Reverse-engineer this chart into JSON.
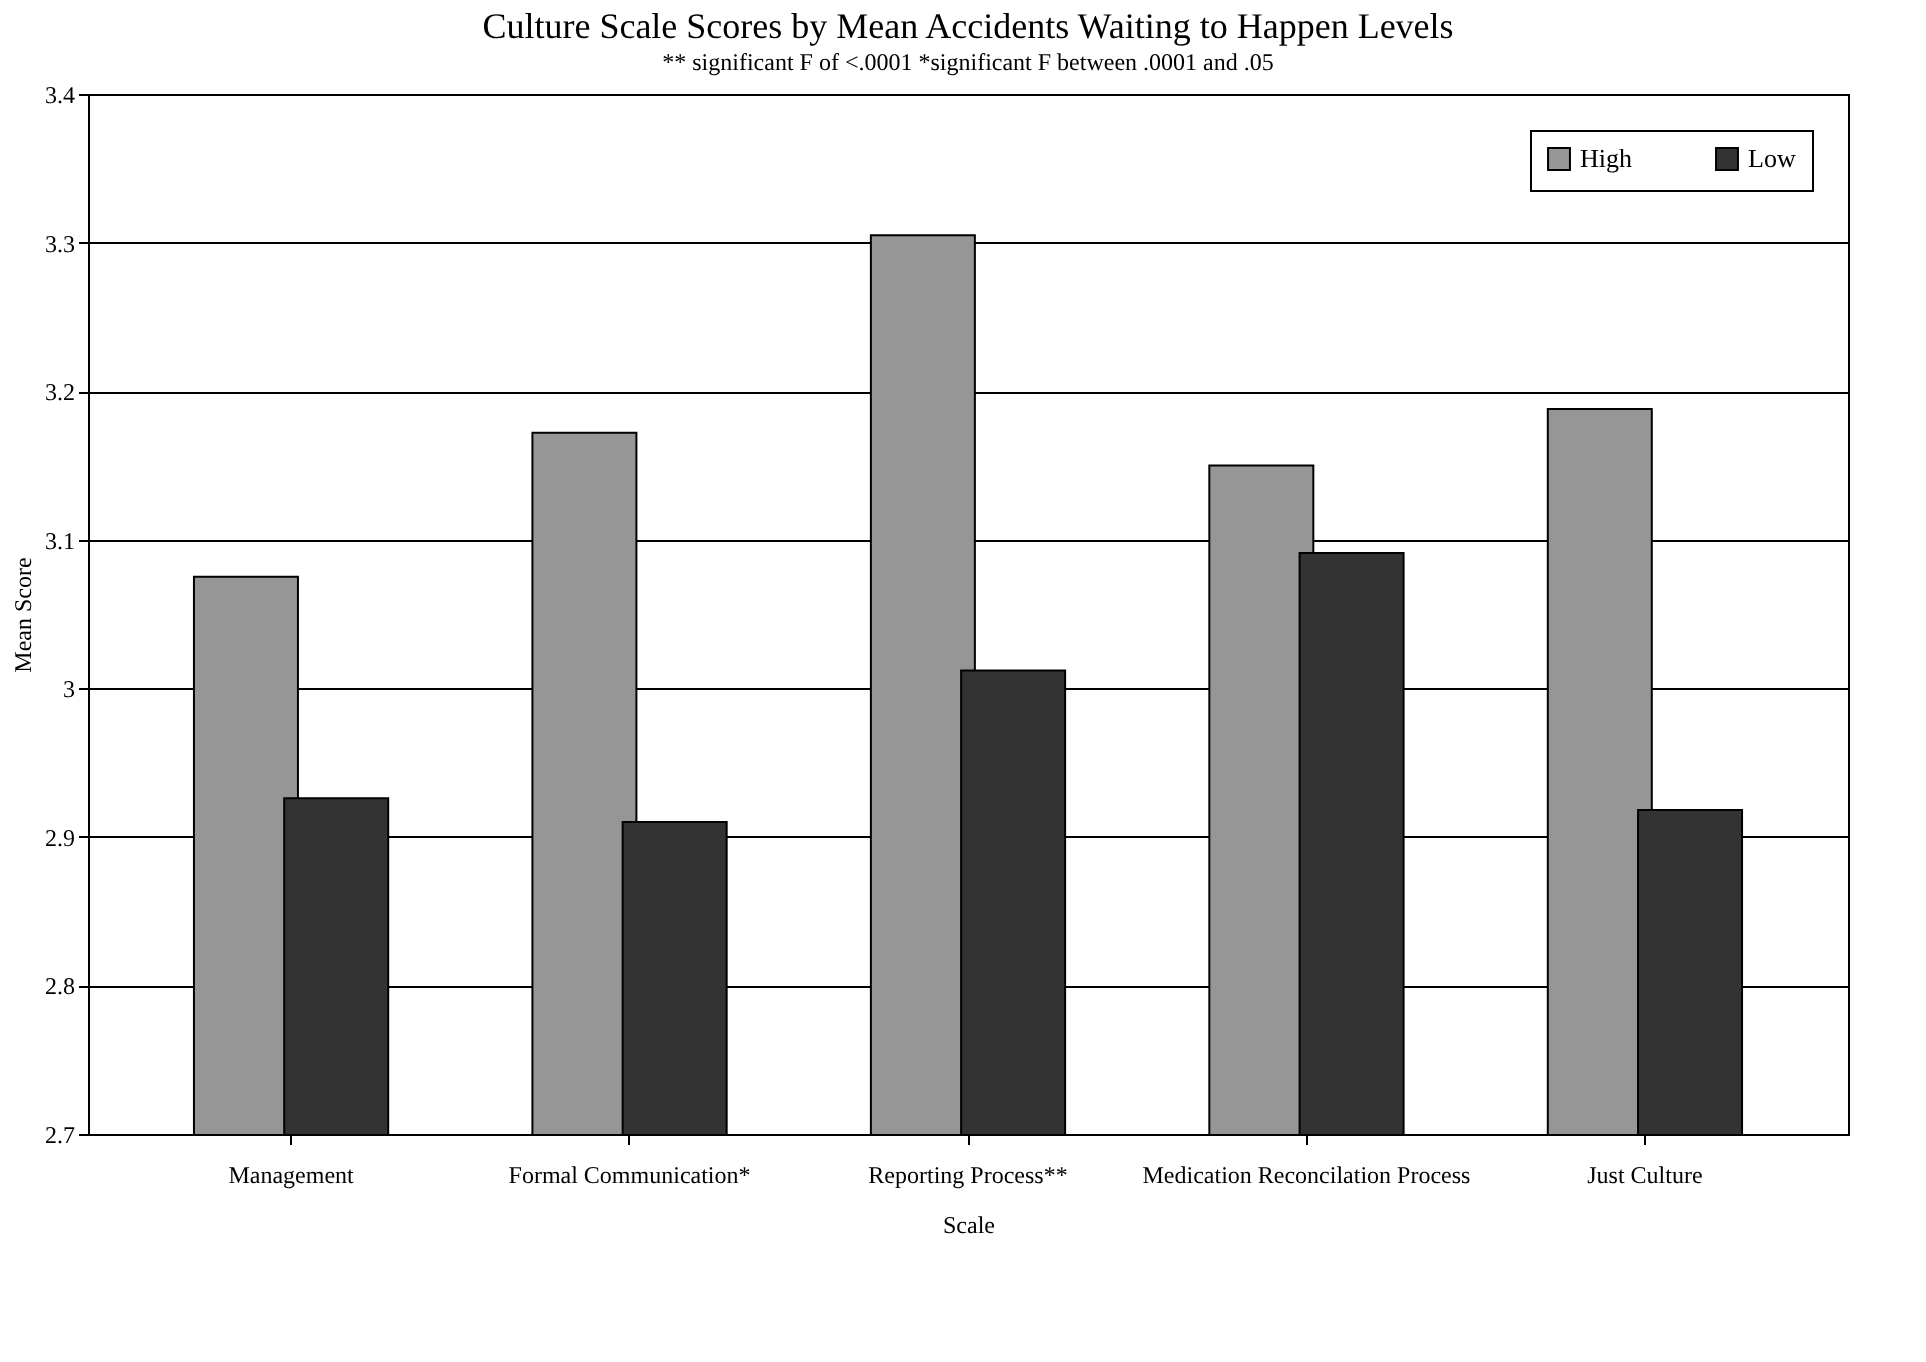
{
  "chart_data": {
    "type": "bar",
    "title": "Culture Scale Scores by Mean Accidents Waiting to Happen Levels",
    "subtitle": "** significant F of <.0001     *significant F between .0001 and .05",
    "xlabel": "Scale",
    "ylabel": "Mean Score",
    "categories": [
      "Management",
      "Formal Communication*",
      "Reporting Process**",
      "Medication Reconcilation Process",
      "Just Culture"
    ],
    "series": [
      {
        "name": "High",
        "color": "#969696",
        "values": [
          3.075,
          3.172,
          3.305,
          3.15,
          3.188
        ]
      },
      {
        "name": "Low",
        "color": "#333333",
        "values": [
          2.926,
          2.91,
          3.012,
          3.091,
          2.918
        ]
      }
    ],
    "ylim": [
      2.7,
      3.4
    ],
    "yticks": [
      2.7,
      2.8,
      2.9,
      {
        "value": 3,
        "label": "3"
      },
      3.1,
      3.2,
      3.3,
      3.4
    ],
    "grid": "y",
    "legend": "top right"
  }
}
